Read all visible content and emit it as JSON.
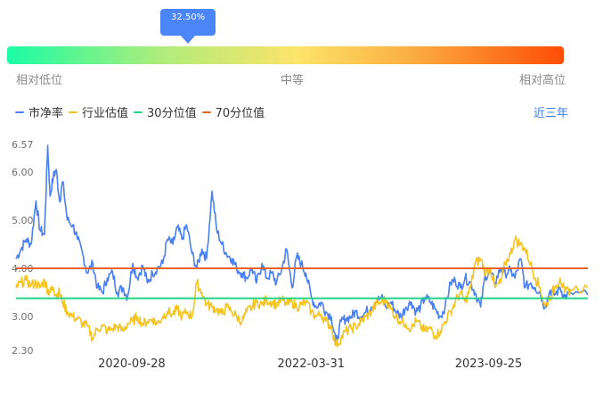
{
  "gauge": {
    "percentile_label": "32.50%",
    "percentile": 0.325,
    "low_label": "相对低位",
    "mid_label": "中等",
    "high_label": "相对高位"
  },
  "legend": {
    "items": [
      {
        "label": "市净率",
        "color": "#4a7ff0"
      },
      {
        "label": "行业估值",
        "color": "#f4c425"
      },
      {
        "label": "30分位值",
        "color": "#20d488"
      },
      {
        "label": "70分位值",
        "color": "#e8631f"
      }
    ]
  },
  "range_button": "近三年",
  "chart_data": {
    "type": "line",
    "ylim": [
      2.3,
      6.57
    ],
    "yticks": [
      "6.57",
      "6.00",
      "5.00",
      "4.00",
      "3.00",
      "2.30"
    ],
    "xticks": [
      "2020-09-28",
      "2022-03-31",
      "2023-09-25"
    ],
    "xrange": [
      "2019-10-10",
      "2024-07-25"
    ],
    "percentile_30": 3.38,
    "percentile_70": 4.0,
    "series": [
      {
        "name": "市净率",
        "color": "#4a7ff0",
        "points": [
          [
            "2019-10-10",
            4.2
          ],
          [
            "2019-10-25",
            4.4
          ],
          [
            "2019-11-10",
            4.6
          ],
          [
            "2019-11-25",
            4.5
          ],
          [
            "2019-12-10",
            5.4
          ],
          [
            "2019-12-22",
            4.8
          ],
          [
            "2020-01-05",
            4.7
          ],
          [
            "2020-01-15",
            6.55
          ],
          [
            "2020-01-22",
            5.5
          ],
          [
            "2020-02-01",
            5.9
          ],
          [
            "2020-02-10",
            6.05
          ],
          [
            "2020-02-20",
            5.4
          ],
          [
            "2020-03-01",
            5.8
          ],
          [
            "2020-03-15",
            5.0
          ],
          [
            "2020-04-01",
            4.9
          ],
          [
            "2020-04-15",
            4.6
          ],
          [
            "2020-05-01",
            4.3
          ],
          [
            "2020-05-15",
            3.9
          ],
          [
            "2020-06-01",
            4.1
          ],
          [
            "2020-06-15",
            3.6
          ],
          [
            "2020-07-01",
            3.5
          ],
          [
            "2020-07-15",
            3.8
          ],
          [
            "2020-08-01",
            3.9
          ],
          [
            "2020-08-15",
            3.5
          ],
          [
            "2020-09-01",
            3.6
          ],
          [
            "2020-09-15",
            3.4
          ],
          [
            "2020-10-01",
            4.1
          ],
          [
            "2020-10-15",
            3.8
          ],
          [
            "2020-11-01",
            4.05
          ],
          [
            "2020-11-15",
            3.7
          ],
          [
            "2020-12-01",
            3.9
          ],
          [
            "2020-12-15",
            4.0
          ],
          [
            "2021-01-01",
            4.1
          ],
          [
            "2021-01-15",
            4.6
          ],
          [
            "2021-02-01",
            4.5
          ],
          [
            "2021-02-15",
            4.85
          ],
          [
            "2021-03-01",
            4.6
          ],
          [
            "2021-03-15",
            4.9
          ],
          [
            "2021-04-01",
            4.3
          ],
          [
            "2021-04-15",
            4.0
          ],
          [
            "2021-05-01",
            4.4
          ],
          [
            "2021-05-15",
            4.2
          ],
          [
            "2021-06-01",
            5.6
          ],
          [
            "2021-06-15",
            4.8
          ],
          [
            "2021-07-01",
            4.5
          ],
          [
            "2021-07-15",
            4.3
          ],
          [
            "2021-08-01",
            4.2
          ],
          [
            "2021-08-15",
            4.0
          ],
          [
            "2021-09-01",
            3.9
          ],
          [
            "2021-09-15",
            3.8
          ],
          [
            "2021-10-01",
            4.0
          ],
          [
            "2021-10-15",
            3.7
          ],
          [
            "2021-11-01",
            4.1
          ],
          [
            "2021-11-15",
            3.8
          ],
          [
            "2021-12-01",
            3.9
          ],
          [
            "2021-12-15",
            3.7
          ],
          [
            "2022-01-01",
            4.0
          ],
          [
            "2022-01-15",
            4.4
          ],
          [
            "2022-02-01",
            3.6
          ],
          [
            "2022-02-15",
            4.25
          ],
          [
            "2022-03-01",
            4.1
          ],
          [
            "2022-03-15",
            3.9
          ],
          [
            "2022-04-01",
            3.4
          ],
          [
            "2022-04-15",
            3.2
          ],
          [
            "2022-05-01",
            3.3
          ],
          [
            "2022-05-15",
            3.1
          ],
          [
            "2022-06-01",
            3.0
          ],
          [
            "2022-06-15",
            2.45
          ],
          [
            "2022-07-01",
            2.9
          ],
          [
            "2022-07-15",
            2.95
          ],
          [
            "2022-08-01",
            3.0
          ],
          [
            "2022-08-15",
            3.1
          ],
          [
            "2022-09-01",
            3.0
          ],
          [
            "2022-09-15",
            3.1
          ],
          [
            "2022-10-01",
            3.2
          ],
          [
            "2022-10-15",
            3.3
          ],
          [
            "2022-11-01",
            3.4
          ],
          [
            "2022-11-15",
            3.2
          ],
          [
            "2022-12-01",
            3.3
          ],
          [
            "2022-12-15",
            3.1
          ],
          [
            "2023-01-01",
            3.0
          ],
          [
            "2023-01-15",
            3.2
          ],
          [
            "2023-02-01",
            3.3
          ],
          [
            "2023-02-15",
            3.1
          ],
          [
            "2023-03-01",
            3.2
          ],
          [
            "2023-03-15",
            3.4
          ],
          [
            "2023-04-01",
            3.3
          ],
          [
            "2023-04-15",
            3.15
          ],
          [
            "2023-05-01",
            3.0
          ],
          [
            "2023-05-15",
            3.2
          ],
          [
            "2023-06-01",
            3.7
          ],
          [
            "2023-06-15",
            3.75
          ],
          [
            "2023-07-01",
            3.6
          ],
          [
            "2023-07-15",
            3.8
          ],
          [
            "2023-08-01",
            3.7
          ],
          [
            "2023-08-15",
            3.5
          ],
          [
            "2023-09-01",
            3.2
          ],
          [
            "2023-09-15",
            3.85
          ],
          [
            "2023-10-01",
            3.9
          ],
          [
            "2023-10-15",
            3.7
          ],
          [
            "2023-11-01",
            4.0
          ],
          [
            "2023-11-15",
            3.9
          ],
          [
            "2023-12-01",
            3.95
          ],
          [
            "2023-12-15",
            3.8
          ],
          [
            "2024-01-01",
            4.2
          ],
          [
            "2024-01-15",
            3.6
          ],
          [
            "2024-02-01",
            3.7
          ],
          [
            "2024-02-15",
            3.6
          ],
          [
            "2024-03-01",
            3.5
          ],
          [
            "2024-03-15",
            3.2
          ],
          [
            "2024-04-01",
            3.55
          ],
          [
            "2024-04-15",
            3.45
          ],
          [
            "2024-05-01",
            3.6
          ],
          [
            "2024-05-15",
            3.4
          ],
          [
            "2024-06-01",
            3.5
          ],
          [
            "2024-07-25",
            3.45
          ]
        ]
      },
      {
        "name": "行业估值",
        "color": "#f4c425",
        "points": [
          [
            "2019-10-10",
            3.6
          ],
          [
            "2019-10-25",
            3.7
          ],
          [
            "2019-11-10",
            3.75
          ],
          [
            "2019-11-25",
            3.65
          ],
          [
            "2019-12-10",
            3.7
          ],
          [
            "2019-12-22",
            3.6
          ],
          [
            "2020-01-05",
            3.75
          ],
          [
            "2020-01-15",
            3.55
          ],
          [
            "2020-01-22",
            3.5
          ],
          [
            "2020-02-01",
            3.6
          ],
          [
            "2020-02-10",
            3.45
          ],
          [
            "2020-02-20",
            3.5
          ],
          [
            "2020-03-01",
            3.3
          ],
          [
            "2020-03-15",
            3.1
          ],
          [
            "2020-04-01",
            3.0
          ],
          [
            "2020-04-15",
            2.95
          ],
          [
            "2020-05-01",
            2.85
          ],
          [
            "2020-05-15",
            2.8
          ],
          [
            "2020-06-01",
            2.55
          ],
          [
            "2020-06-15",
            2.75
          ],
          [
            "2020-07-01",
            2.8
          ],
          [
            "2020-07-15",
            2.7
          ],
          [
            "2020-08-01",
            2.75
          ],
          [
            "2020-08-15",
            2.8
          ],
          [
            "2020-09-01",
            2.7
          ],
          [
            "2020-09-15",
            2.85
          ],
          [
            "2020-10-01",
            2.9
          ],
          [
            "2020-10-15",
            3.0
          ],
          [
            "2020-11-01",
            2.85
          ],
          [
            "2020-11-15",
            2.9
          ],
          [
            "2020-12-01",
            2.95
          ],
          [
            "2020-12-15",
            2.85
          ],
          [
            "2021-01-01",
            3.0
          ],
          [
            "2021-01-15",
            3.1
          ],
          [
            "2021-02-01",
            3.05
          ],
          [
            "2021-02-15",
            3.15
          ],
          [
            "2021-03-01",
            3.0
          ],
          [
            "2021-03-15",
            3.1
          ],
          [
            "2021-04-01",
            3.0
          ],
          [
            "2021-04-15",
            3.7
          ],
          [
            "2021-05-01",
            3.5
          ],
          [
            "2021-05-15",
            3.25
          ],
          [
            "2021-06-01",
            3.2
          ],
          [
            "2021-06-15",
            3.15
          ],
          [
            "2021-07-01",
            3.05
          ],
          [
            "2021-07-15",
            3.2
          ],
          [
            "2021-08-01",
            3.1
          ],
          [
            "2021-08-15",
            3.0
          ],
          [
            "2021-09-01",
            2.9
          ],
          [
            "2021-09-15",
            3.1
          ],
          [
            "2021-10-01",
            3.2
          ],
          [
            "2021-10-15",
            3.3
          ],
          [
            "2021-11-01",
            3.25
          ],
          [
            "2021-11-15",
            3.35
          ],
          [
            "2021-12-01",
            3.3
          ],
          [
            "2021-12-15",
            3.25
          ],
          [
            "2022-01-01",
            3.35
          ],
          [
            "2022-01-15",
            3.25
          ],
          [
            "2022-02-01",
            3.3
          ],
          [
            "2022-02-15",
            3.2
          ],
          [
            "2022-03-01",
            3.25
          ],
          [
            "2022-03-15",
            3.3
          ],
          [
            "2022-04-01",
            3.1
          ],
          [
            "2022-04-15",
            3.0
          ],
          [
            "2022-05-01",
            3.05
          ],
          [
            "2022-05-15",
            2.9
          ],
          [
            "2022-06-01",
            2.8
          ],
          [
            "2022-06-15",
            2.4
          ],
          [
            "2022-07-01",
            2.55
          ],
          [
            "2022-07-15",
            2.7
          ],
          [
            "2022-08-01",
            2.75
          ],
          [
            "2022-08-15",
            2.8
          ],
          [
            "2022-09-01",
            2.9
          ],
          [
            "2022-09-15",
            3.0
          ],
          [
            "2022-10-01",
            3.1
          ],
          [
            "2022-10-15",
            3.25
          ],
          [
            "2022-11-01",
            3.3
          ],
          [
            "2022-11-15",
            3.35
          ],
          [
            "2022-12-01",
            3.15
          ],
          [
            "2022-12-15",
            3.0
          ],
          [
            "2023-01-01",
            2.9
          ],
          [
            "2023-01-15",
            2.85
          ],
          [
            "2023-02-01",
            2.75
          ],
          [
            "2023-02-15",
            2.9
          ],
          [
            "2023-03-01",
            2.8
          ],
          [
            "2023-03-15",
            2.7
          ],
          [
            "2023-04-01",
            2.75
          ],
          [
            "2023-04-15",
            2.6
          ],
          [
            "2023-05-01",
            2.7
          ],
          [
            "2023-05-15",
            2.9
          ],
          [
            "2023-06-01",
            3.1
          ],
          [
            "2023-06-15",
            3.3
          ],
          [
            "2023-07-01",
            3.5
          ],
          [
            "2023-07-15",
            3.3
          ],
          [
            "2023-08-01",
            3.6
          ],
          [
            "2023-08-15",
            4.1
          ],
          [
            "2023-09-01",
            4.2
          ],
          [
            "2023-09-15",
            3.9
          ],
          [
            "2023-10-01",
            4.0
          ],
          [
            "2023-10-15",
            3.6
          ],
          [
            "2023-11-01",
            3.7
          ],
          [
            "2023-11-15",
            4.1
          ],
          [
            "2023-12-01",
            4.3
          ],
          [
            "2023-12-15",
            4.6
          ],
          [
            "2024-01-01",
            4.5
          ],
          [
            "2024-01-15",
            4.4
          ],
          [
            "2024-02-01",
            4.1
          ],
          [
            "2024-02-15",
            3.8
          ],
          [
            "2024-03-01",
            3.6
          ],
          [
            "2024-03-15",
            3.2
          ],
          [
            "2024-04-01",
            3.4
          ],
          [
            "2024-04-15",
            3.6
          ],
          [
            "2024-05-01",
            3.8
          ],
          [
            "2024-05-15",
            3.5
          ],
          [
            "2024-06-01",
            3.55
          ],
          [
            "2024-07-25",
            3.6
          ]
        ]
      }
    ]
  }
}
